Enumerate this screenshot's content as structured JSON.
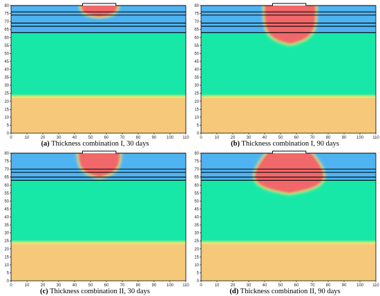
{
  "figure": {
    "panels": [
      {
        "letter": "(a)",
        "caption": "Thickness combination I, 30 days"
      },
      {
        "letter": "(b)",
        "caption": "Thickness combination I, 90 days"
      },
      {
        "letter": "(c)",
        "caption": "Thickness combination II, 30 days"
      },
      {
        "letter": "(d)",
        "caption": "Thickness combination II, 90 days"
      }
    ]
  },
  "colors": {
    "base_green": "#17e8a8",
    "bottom_orange": "#f6c87a",
    "top_blue": "#4fb3f2",
    "core_red": "#f0676a",
    "edge_yellow": "#e8e872"
  },
  "chart_data": [
    {
      "type": "heatmap",
      "title": "",
      "xlabel": "",
      "ylabel": "",
      "xlim": [
        0,
        110
      ],
      "ylim": [
        0,
        80
      ],
      "xticks": [
        0,
        10,
        20,
        30,
        40,
        50,
        60,
        70,
        80,
        90,
        100,
        110
      ],
      "yticks": [
        0,
        5,
        10,
        15,
        20,
        25,
        30,
        35,
        40,
        45,
        50,
        55,
        60,
        65,
        70,
        75,
        80
      ],
      "notch": {
        "x": [
          45,
          66
        ],
        "y": 80
      },
      "layer_lines_y": [
        76,
        74,
        69,
        67,
        63
      ],
      "blue_top": 63,
      "orange_top": 22,
      "plume": {
        "center_x": 55.5,
        "half_width_top": 11.5,
        "bottom_half_width": 9,
        "bottom_y": 73
      },
      "grid": false
    },
    {
      "type": "heatmap",
      "title": "",
      "xlabel": "",
      "ylabel": "",
      "xlim": [
        0,
        110
      ],
      "ylim": [
        0,
        80
      ],
      "xticks": [
        0,
        10,
        20,
        30,
        40,
        50,
        60,
        70,
        80,
        90,
        100,
        110
      ],
      "yticks": [
        0,
        5,
        10,
        15,
        20,
        25,
        30,
        35,
        40,
        45,
        50,
        55,
        60,
        65,
        70,
        75,
        80
      ],
      "notch": {
        "x": [
          45,
          66
        ],
        "y": 80
      },
      "layer_lines_y": [
        76,
        74,
        69,
        67,
        63
      ],
      "blue_top": 63,
      "orange_top": 22,
      "plume": {
        "center_x": 56,
        "half_width_top": 16,
        "bottom_half_width": 16,
        "bottom_y": 56
      },
      "grid": false
    },
    {
      "type": "heatmap",
      "title": "",
      "xlabel": "",
      "ylabel": "",
      "xlim": [
        0,
        110
      ],
      "ylim": [
        0,
        80
      ],
      "xticks": [
        0,
        10,
        20,
        30,
        40,
        50,
        60,
        70,
        80,
        90,
        100,
        110
      ],
      "yticks": [
        0,
        5,
        10,
        15,
        20,
        25,
        30,
        35,
        40,
        45,
        50,
        55,
        60,
        65,
        70,
        75,
        80
      ],
      "notch": {
        "x": [
          45,
          66
        ],
        "y": 80
      },
      "layer_lines_y": [
        70,
        68,
        65,
        63
      ],
      "blue_top": 63,
      "orange_top": 23,
      "plume": {
        "center_x": 55.5,
        "half_width_top": 13,
        "bottom_half_width": 10,
        "bottom_y": 65
      },
      "grid": false
    },
    {
      "type": "heatmap",
      "title": "",
      "xlabel": "",
      "ylabel": "",
      "xlim": [
        0,
        110
      ],
      "ylim": [
        0,
        80
      ],
      "xticks": [
        0,
        10,
        20,
        30,
        40,
        50,
        60,
        70,
        80,
        90,
        100,
        110
      ],
      "yticks": [
        0,
        5,
        10,
        15,
        20,
        25,
        30,
        35,
        40,
        45,
        50,
        55,
        60,
        65,
        70,
        75,
        80
      ],
      "notch": {
        "x": [
          45,
          66
        ],
        "y": 80
      },
      "layer_lines_y": [
        70,
        68,
        65,
        63
      ],
      "blue_top": 63,
      "orange_top": 23,
      "plume": {
        "center_x": 55.5,
        "half_width_top": 13,
        "bottom_half_width": 24,
        "bottom_y": 55
      },
      "grid": false
    }
  ]
}
